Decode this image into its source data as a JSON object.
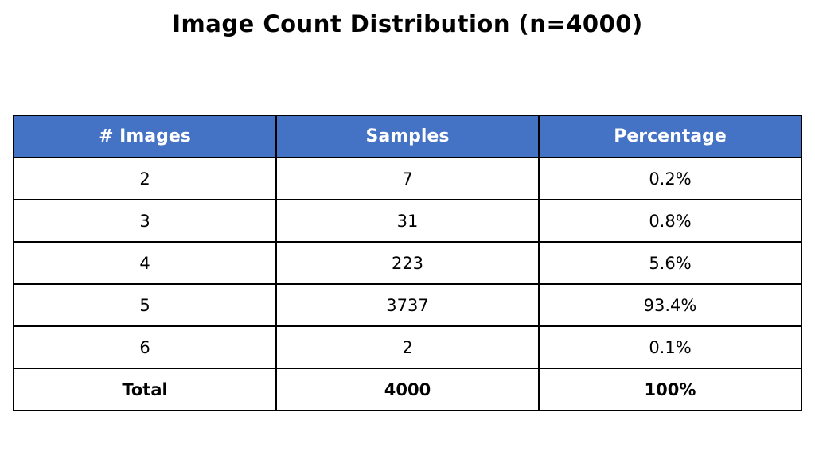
{
  "title": "Image Count Distribution (n=4000)",
  "table": {
    "headers": [
      "# Images",
      "Samples",
      "Percentage"
    ],
    "rows": [
      [
        "2",
        "7",
        "0.2%"
      ],
      [
        "3",
        "31",
        "0.8%"
      ],
      [
        "4",
        "223",
        "5.6%"
      ],
      [
        "5",
        "3737",
        "93.4%"
      ],
      [
        "6",
        "2",
        "0.1%"
      ]
    ],
    "total_row": [
      "Total",
      "4000",
      "100%"
    ]
  },
  "colors": {
    "header_bg": "#4472C4",
    "header_text": "#FFFFFF",
    "border": "#000000",
    "background": "#FFFFFF"
  },
  "chart_data": {
    "type": "table",
    "title": "Image Count Distribution (n=4000)",
    "columns": [
      "# Images",
      "Samples",
      "Percentage"
    ],
    "categories": [
      2,
      3,
      4,
      5,
      6
    ],
    "series": [
      {
        "name": "Samples",
        "values": [
          7,
          31,
          223,
          3737,
          2
        ]
      },
      {
        "name": "Percentage",
        "values": [
          0.2,
          0.8,
          5.6,
          93.4,
          0.1
        ]
      }
    ],
    "total": {
      "samples": 4000,
      "percentage": 100
    },
    "n": 4000,
    "legend_position": "none",
    "grid": false
  }
}
